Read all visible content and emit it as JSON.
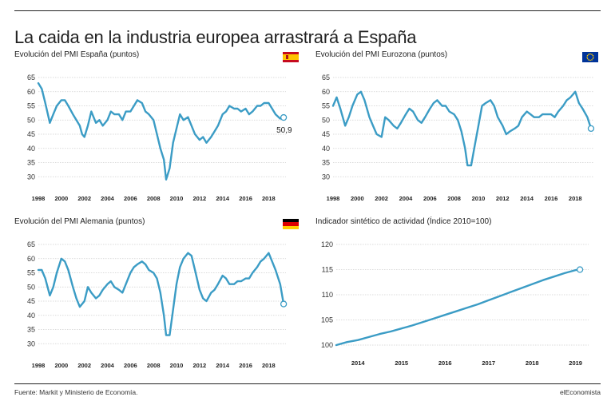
{
  "title": "La caida en la industria europea arrastrará a España",
  "source": "Fuente: Markit y Ministerio de Economía.",
  "brand": "elEconomista",
  "line_color": "#3b9cc5",
  "chart_data": [
    {
      "type": "line",
      "title": "Evolución del PMI España (puntos)",
      "flag": "spain-flag",
      "ylim": [
        25,
        65
      ],
      "yticks": [
        30,
        35,
        40,
        45,
        50,
        55,
        60,
        65
      ],
      "xlim": [
        1998,
        2019.5
      ],
      "xticks": [
        1998,
        2000,
        2002,
        2004,
        2006,
        2008,
        2010,
        2012,
        2014,
        2016,
        2018
      ],
      "grid": true,
      "end_label": "50,9",
      "series": [
        {
          "x": [
            1998.0,
            1998.3,
            1998.6,
            1999.0,
            1999.3,
            1999.6,
            2000.0,
            2000.3,
            2000.6,
            2001.0,
            2001.3,
            2001.6,
            2001.8,
            2002.0,
            2002.3,
            2002.6,
            2003.0,
            2003.3,
            2003.6,
            2004.0,
            2004.3,
            2004.6,
            2005.0,
            2005.3,
            2005.6,
            2006.0,
            2006.3,
            2006.6,
            2007.0,
            2007.3,
            2007.6,
            2008.0,
            2008.3,
            2008.6,
            2008.9,
            2009.1,
            2009.4,
            2009.7,
            2010.0,
            2010.3,
            2010.6,
            2011.0,
            2011.3,
            2011.6,
            2012.0,
            2012.3,
            2012.6,
            2013.0,
            2013.3,
            2013.6,
            2014.0,
            2014.3,
            2014.6,
            2015.0,
            2015.3,
            2015.6,
            2016.0,
            2016.3,
            2016.6,
            2017.0,
            2017.3,
            2017.6,
            2018.0,
            2018.3,
            2018.6,
            2019.0,
            2019.3
          ],
          "y": [
            63,
            61,
            56,
            49,
            52,
            55,
            57,
            57,
            55,
            52,
            50,
            48,
            45,
            44,
            48,
            53,
            49,
            50,
            48,
            50,
            53,
            52,
            52,
            50,
            53,
            53,
            55,
            57,
            56,
            53,
            52,
            50,
            45,
            40,
            36,
            29,
            33,
            42,
            47,
            52,
            50,
            51,
            48,
            45,
            43,
            44,
            42,
            44,
            46,
            48,
            52,
            53,
            55,
            54,
            54,
            53,
            54,
            52,
            53,
            55,
            55,
            56,
            56,
            54,
            52,
            50.5,
            50.9
          ]
        }
      ]
    },
    {
      "type": "line",
      "title": "Evolución del PMI Eurozona (puntos)",
      "flag": "eu-flag",
      "ylim": [
        25,
        65
      ],
      "yticks": [
        30,
        35,
        40,
        45,
        50,
        55,
        60,
        65
      ],
      "xlim": [
        1998,
        2019.5
      ],
      "xticks": [
        1998,
        2000,
        2002,
        2004,
        2006,
        2008,
        2010,
        2012,
        2014,
        2016,
        2018
      ],
      "grid": true,
      "series": [
        {
          "x": [
            1998.0,
            1998.3,
            1998.6,
            1999.0,
            1999.3,
            1999.6,
            2000.0,
            2000.3,
            2000.6,
            2001.0,
            2001.3,
            2001.6,
            2002.0,
            2002.3,
            2002.6,
            2003.0,
            2003.3,
            2003.6,
            2004.0,
            2004.3,
            2004.6,
            2005.0,
            2005.3,
            2005.6,
            2006.0,
            2006.3,
            2006.6,
            2007.0,
            2007.3,
            2007.6,
            2008.0,
            2008.3,
            2008.6,
            2008.9,
            2009.1,
            2009.4,
            2009.7,
            2010.0,
            2010.3,
            2010.6,
            2011.0,
            2011.3,
            2011.6,
            2012.0,
            2012.3,
            2012.6,
            2013.0,
            2013.3,
            2013.6,
            2014.0,
            2014.3,
            2014.6,
            2015.0,
            2015.3,
            2015.6,
            2016.0,
            2016.3,
            2016.6,
            2017.0,
            2017.3,
            2017.6,
            2018.0,
            2018.3,
            2018.6,
            2019.0,
            2019.3
          ],
          "y": [
            55,
            58,
            54,
            48,
            51,
            55,
            59,
            60,
            57,
            51,
            48,
            45,
            44,
            51,
            50,
            48,
            47,
            49,
            52,
            54,
            53,
            50,
            49,
            51,
            54,
            56,
            57,
            55,
            55,
            53,
            52,
            50,
            46,
            40,
            34,
            34,
            41,
            48,
            55,
            56,
            57,
            55,
            51,
            48,
            45,
            46,
            47,
            48,
            51,
            53,
            52,
            51,
            51,
            52,
            52,
            52,
            51,
            53,
            55,
            57,
            58,
            60,
            56,
            54,
            51,
            47
          ]
        }
      ]
    },
    {
      "type": "line",
      "title": "Evolución del PMI Alemania (puntos)",
      "flag": "germany-flag",
      "ylim": [
        25,
        65
      ],
      "yticks": [
        30,
        35,
        40,
        45,
        50,
        55,
        60,
        65
      ],
      "xlim": [
        1998,
        2019.5
      ],
      "xticks": [
        1998,
        2000,
        2002,
        2004,
        2006,
        2008,
        2010,
        2012,
        2014,
        2016,
        2018
      ],
      "grid": true,
      "series": [
        {
          "x": [
            1998.0,
            1998.3,
            1998.6,
            1999.0,
            1999.3,
            1999.6,
            2000.0,
            2000.3,
            2000.6,
            2001.0,
            2001.3,
            2001.6,
            2002.0,
            2002.3,
            2002.6,
            2003.0,
            2003.3,
            2003.6,
            2004.0,
            2004.3,
            2004.6,
            2005.0,
            2005.3,
            2005.6,
            2006.0,
            2006.3,
            2006.6,
            2007.0,
            2007.3,
            2007.6,
            2008.0,
            2008.3,
            2008.6,
            2008.9,
            2009.1,
            2009.4,
            2009.7,
            2010.0,
            2010.3,
            2010.6,
            2011.0,
            2011.3,
            2011.6,
            2012.0,
            2012.3,
            2012.6,
            2013.0,
            2013.3,
            2013.6,
            2014.0,
            2014.3,
            2014.6,
            2015.0,
            2015.3,
            2015.6,
            2016.0,
            2016.3,
            2016.6,
            2017.0,
            2017.3,
            2017.6,
            2018.0,
            2018.3,
            2018.6,
            2019.0,
            2019.3
          ],
          "y": [
            56,
            56,
            53,
            47,
            50,
            55,
            60,
            59,
            56,
            50,
            46,
            43,
            45,
            50,
            48,
            46,
            47,
            49,
            51,
            52,
            50,
            49,
            48,
            51,
            55,
            57,
            58,
            59,
            58,
            56,
            55,
            53,
            48,
            40,
            33,
            33,
            42,
            51,
            57,
            60,
            62,
            61,
            56,
            49,
            46,
            45,
            48,
            49,
            51,
            54,
            53,
            51,
            51,
            52,
            52,
            53,
            53,
            55,
            57,
            59,
            60,
            62,
            59,
            56,
            51,
            44
          ]
        }
      ]
    },
    {
      "type": "line",
      "title": "Indicador sintético de actividad (Índice 2010=100)",
      "ylim": [
        100,
        120
      ],
      "yticks": [
        100,
        105,
        110,
        115,
        120
      ],
      "xlim": [
        2013.5,
        2019.3
      ],
      "xticks": [
        2014,
        2015,
        2016,
        2017,
        2018,
        2019
      ],
      "grid": true,
      "series": [
        {
          "x": [
            2013.5,
            2013.75,
            2014.0,
            2014.25,
            2014.5,
            2014.75,
            2015.0,
            2015.25,
            2015.5,
            2015.75,
            2016.0,
            2016.25,
            2016.5,
            2016.75,
            2017.0,
            2017.25,
            2017.5,
            2017.75,
            2018.0,
            2018.25,
            2018.5,
            2018.75,
            2019.0,
            2019.1
          ],
          "y": [
            100.0,
            100.6,
            101.0,
            101.6,
            102.2,
            102.7,
            103.3,
            103.9,
            104.6,
            105.3,
            106.0,
            106.7,
            107.4,
            108.1,
            108.9,
            109.7,
            110.5,
            111.3,
            112.1,
            112.9,
            113.6,
            114.3,
            114.9,
            115.0
          ]
        }
      ]
    }
  ]
}
